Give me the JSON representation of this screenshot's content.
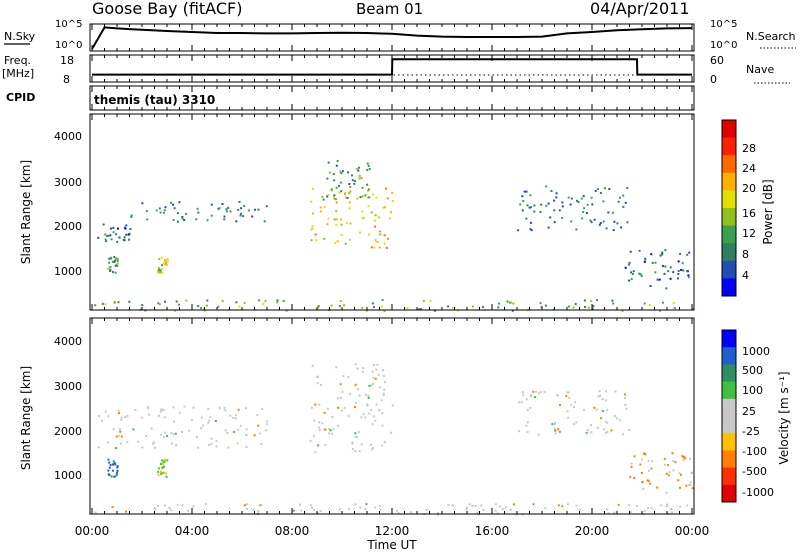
{
  "header": {
    "station": "Goose Bay (fitACF)",
    "beam": "Beam 01",
    "date": "04/Apr/2011"
  },
  "top_strip": {
    "nsky_label": "N.Sky",
    "nsky_ticks": [
      "10^5",
      "10^0"
    ],
    "nsearch_label": "N.Search",
    "nsearch_ticks": [
      "10^5",
      "10^0"
    ],
    "freq_label_1": "Freq.",
    "freq_label_2": "[MHz]",
    "freq_ticks": [
      "18",
      "8"
    ],
    "nave_label": "Nave",
    "nave_ticks": [
      "60",
      "0"
    ],
    "cpid_label": "CPID",
    "cpid_value": "themis (tau) 3310"
  },
  "time_axis": {
    "ticks": [
      "00:00",
      "04:00",
      "08:00",
      "12:00",
      "16:00",
      "20:00",
      "00:00"
    ],
    "label": "Time UT"
  },
  "power_panel": {
    "ylabel": "Slant Range [km]",
    "yticks": [
      "4000",
      "3000",
      "2000",
      "1000"
    ],
    "colorbar_label": "Power [dB]",
    "colorbar_ticks": [
      "28",
      "24",
      "20",
      "16",
      "12",
      "8",
      "4"
    ],
    "colors": [
      "#0000ff",
      "#1f4fb0",
      "#2f7f60",
      "#3aa050",
      "#90c020",
      "#e0e000",
      "#ffb000",
      "#ff6a00",
      "#ff2000",
      "#e00000"
    ]
  },
  "velocity_panel": {
    "ylabel": "Slant Range [km]",
    "yticks": [
      "4000",
      "3000",
      "2000",
      "1000"
    ],
    "colorbar_label": "Velocity [m s⁻¹]",
    "colorbar_ticks": [
      "1000",
      "500",
      "100",
      "25",
      "-25",
      "-100",
      "-500",
      "-1000"
    ],
    "colors": [
      "#0000ff",
      "#1f5fd0",
      "#2f8f60",
      "#40c040",
      "#c8c8c8",
      "#c8c8c8",
      "#ffc000",
      "#ff8000",
      "#ff3000",
      "#e00000"
    ]
  },
  "chart_data": [
    {
      "type": "line",
      "title": "N.Sky / N.Search",
      "x": [
        0,
        0.5,
        1,
        2,
        3,
        4,
        5,
        6,
        7,
        8,
        9,
        10,
        11,
        12,
        13,
        14,
        15,
        16,
        17,
        18,
        19,
        20,
        21,
        22,
        23,
        24
      ],
      "series": [
        {
          "name": "N.Sky",
          "values": [
            1,
            50000,
            30000,
            15000,
            8000,
            5000,
            3000,
            3000,
            2500,
            2500,
            3000,
            3500,
            3000,
            2000,
            800,
            500,
            400,
            400,
            400,
            500,
            2500,
            5000,
            12000,
            20000,
            30000,
            35000
          ]
        }
      ],
      "ylim": [
        1,
        100000
      ],
      "yscale": "log"
    },
    {
      "type": "line",
      "title": "Freq. / Nave",
      "x": [
        0,
        12,
        12.01,
        21.8,
        21.81,
        24
      ],
      "series": [
        {
          "name": "Freq.",
          "values": [
            10,
            10,
            17,
            17,
            10,
            10
          ]
        }
      ],
      "ylim": [
        8,
        18
      ]
    },
    {
      "type": "scatter",
      "title": "Power [dB]",
      "xlabel": "Time UT",
      "ylabel": "Slant Range [km]",
      "xlim": [
        0,
        24
      ],
      "ylim": [
        200,
        4600
      ],
      "clusters": [
        {
          "t0": 0.2,
          "t1": 1.5,
          "r0": 1700,
          "r1": 2200,
          "value": 5
        },
        {
          "t0": 1.5,
          "t1": 7.0,
          "r0": 2200,
          "r1": 2650,
          "value": 6
        },
        {
          "t0": 0.6,
          "t1": 1.0,
          "r0": 1050,
          "r1": 1450,
          "value": 8
        },
        {
          "t0": 2.6,
          "t1": 3.0,
          "r0": 1050,
          "r1": 1450,
          "value": 14
        },
        {
          "t0": 8.7,
          "t1": 12.0,
          "r0": 1600,
          "r1": 3000,
          "value": 16
        },
        {
          "t0": 9.2,
          "t1": 11.2,
          "r0": 2700,
          "r1": 3600,
          "value": 7
        },
        {
          "t0": 17.0,
          "t1": 21.5,
          "r0": 2000,
          "r1": 3000,
          "value": 6
        },
        {
          "t0": 21.3,
          "t1": 24.0,
          "r0": 700,
          "r1": 1600,
          "value": 5
        },
        {
          "t0": 0.0,
          "t1": 24.0,
          "r0": 200,
          "r1": 450,
          "value": 10
        }
      ]
    },
    {
      "type": "scatter",
      "title": "Velocity [m s⁻¹]",
      "xlabel": "Time UT",
      "ylabel": "Slant Range [km]",
      "xlim": [
        0,
        24
      ],
      "ylim": [
        200,
        4600
      ],
      "clusters": [
        {
          "t0": 0.2,
          "t1": 7.0,
          "r0": 1700,
          "r1": 2650,
          "value": 0
        },
        {
          "t0": 0.6,
          "t1": 1.0,
          "r0": 1050,
          "r1": 1450,
          "value": 500
        },
        {
          "t0": 2.6,
          "t1": 3.0,
          "r0": 1050,
          "r1": 1450,
          "value": 100
        },
        {
          "t0": 8.7,
          "t1": 12.0,
          "r0": 1600,
          "r1": 3600,
          "value": 0
        },
        {
          "t0": 17.0,
          "t1": 21.5,
          "r0": 2000,
          "r1": 3000,
          "value": 0
        },
        {
          "t0": 21.3,
          "t1": 24.0,
          "r0": 700,
          "r1": 1600,
          "value": -100
        },
        {
          "t0": 0.0,
          "t1": 24.0,
          "r0": 200,
          "r1": 450,
          "value": 0
        }
      ]
    }
  ]
}
